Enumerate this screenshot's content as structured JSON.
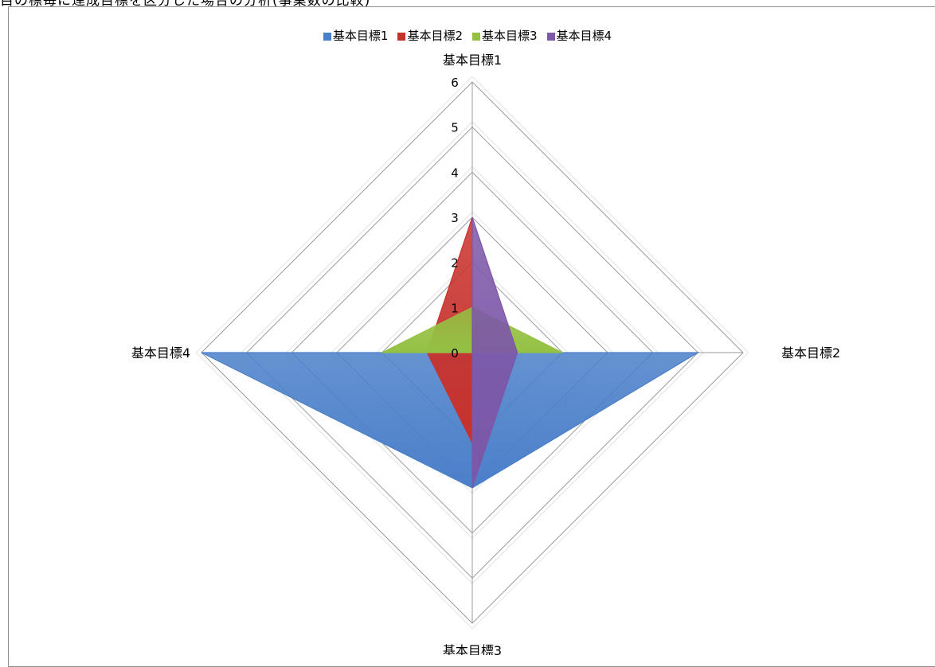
{
  "cut_header_text": "目の標毎に達成目標を区分した場合の分析(事業数の比較)",
  "chart_data": {
    "type": "radar",
    "axes": [
      "基本目標1",
      "基本目標2",
      "基本目標3",
      "基本目標4"
    ],
    "scale": {
      "min": 0,
      "max": 6,
      "step": 1
    },
    "tick_labels": [
      "0",
      "1",
      "2",
      "3",
      "4",
      "5",
      "6"
    ],
    "series": [
      {
        "name": "基本目標1",
        "values": [
          0,
          5,
          3,
          6
        ],
        "color": "#4a7fc9"
      },
      {
        "name": "基本目標2",
        "values": [
          3,
          0,
          2,
          1
        ],
        "color": "#c8322d"
      },
      {
        "name": "基本目標3",
        "values": [
          1,
          2,
          0,
          2
        ],
        "color": "#94c143"
      },
      {
        "name": "基本目標4",
        "values": [
          3,
          1,
          3,
          0
        ],
        "color": "#7d57a8"
      }
    ],
    "legend_position": "top",
    "grid": true
  }
}
